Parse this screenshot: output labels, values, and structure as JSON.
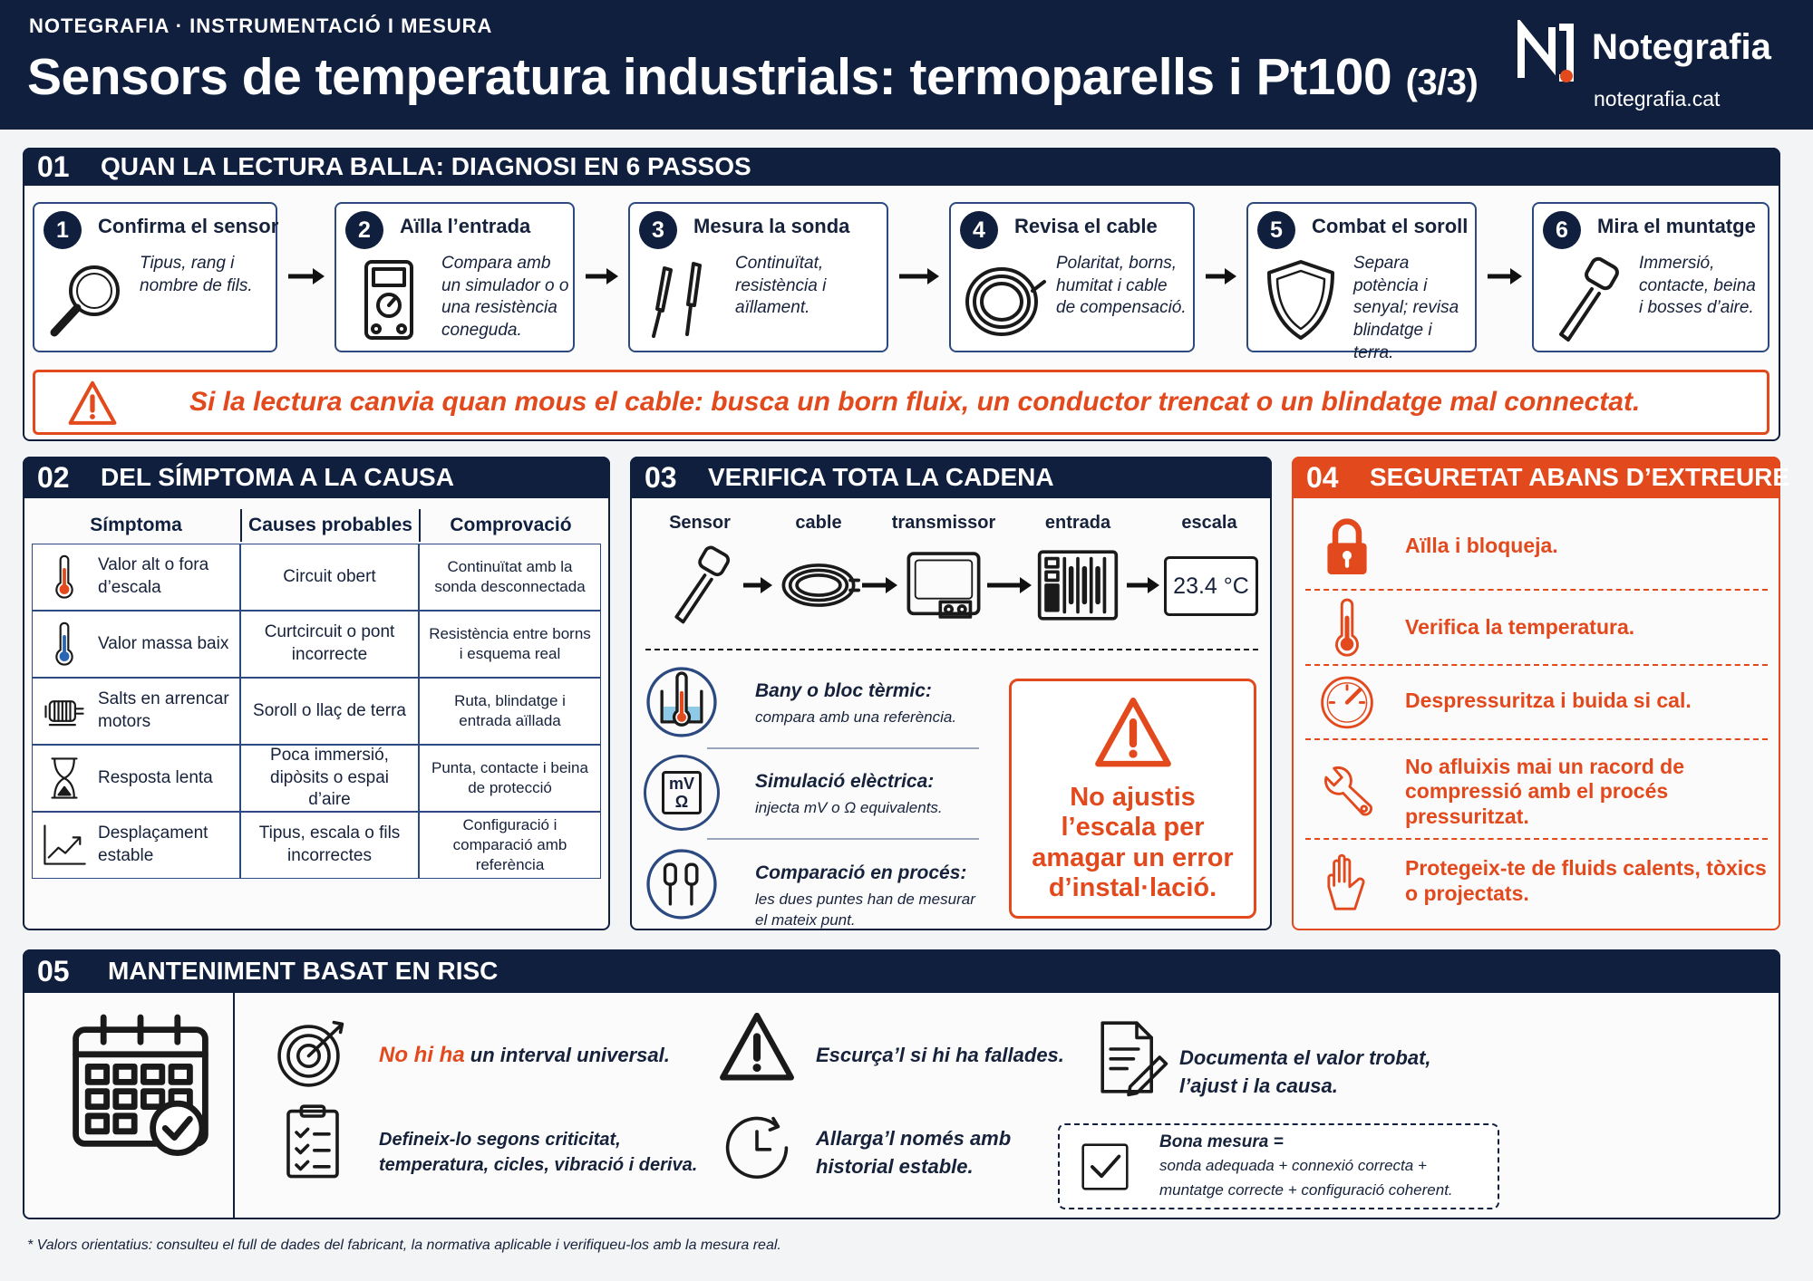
{
  "header": {
    "kicker": "NOTEGRAFIA · INSTRUMENTACIÓ I MESURA",
    "title": "Sensors de temperatura industrials: termoparells i Pt100",
    "part": "(3/3)",
    "brand": "Notegrafia",
    "url": "notegrafia.cat"
  },
  "section1": {
    "number": "01",
    "title": "QUAN LA LECTURA BALLA: DIAGNOSI EN 6 PASSOS",
    "steps": [
      {
        "number": "1",
        "title": "Confirma el sensor",
        "text": "Tipus, rang i nombre de fils."
      },
      {
        "number": "2",
        "title": "Aïlla l’entrada",
        "text": "Compara amb un simulador o o una resistència coneguda."
      },
      {
        "number": "3",
        "title": "Mesura la sonda",
        "text": "Continuïtat, resistència i aïllament."
      },
      {
        "number": "4",
        "title": "Revisa el cable",
        "text": "Polaritat, borns, humitat i cable de compensació."
      },
      {
        "number": "5",
        "title": "Combat el soroll",
        "text": "Separa potència i senyal; revisa blindatge i terra."
      },
      {
        "number": "6",
        "title": "Mira el muntatge",
        "text": "Immersió, contacte, beina i bosses d’aire."
      }
    ],
    "warning": "Si la lectura canvia quan mous el cable: busca un born fluix, un conductor trencat o un blindatge mal connectat."
  },
  "section2": {
    "number": "02",
    "title": "DEL SÍMPTOMA A LA CAUSA",
    "table": {
      "headers": [
        "Símptoma",
        "Causes probables",
        "Comprovació"
      ],
      "rows": [
        [
          "Valor alt o fora d’escala",
          "Circuit obert",
          "Continuïtat amb la sonda desconnectada"
        ],
        [
          "Valor massa baix",
          "Curtcircuit o pont incorrecte",
          "Resistència entre borns i esquema real"
        ],
        [
          "Salts en arrencar motors",
          "Soroll o llaç de terra",
          "Ruta, blindatge i entrada aïllada"
        ],
        [
          "Resposta lenta",
          "Poca immersió, dipòsits o espai d’aire",
          "Punta, contacte i beina de protecció"
        ],
        [
          "Desplaçament estable",
          "Tipus, escala o fils incorrectes",
          "Configuració i comparació amb referència"
        ]
      ]
    }
  },
  "section3": {
    "number": "03",
    "title": "VERIFICA TOTA LA CADENA",
    "chain": [
      "Sensor",
      "cable",
      "transmissor",
      "entrada",
      "escala"
    ],
    "display": "23.4 °C",
    "methods": [
      {
        "title": "Bany o bloc tèrmic:",
        "text": "compara amb una referència."
      },
      {
        "title": "Simulació elèctrica:",
        "text": "injecta mV o Ω equivalents."
      },
      {
        "title": "Comparació en procés:",
        "text": "les dues puntes han de mesurar el mateix punt."
      }
    ],
    "electric_icon": [
      "mV",
      "Ω"
    ],
    "warning": "No ajustis l’escala per amagar un error d’instal·lació."
  },
  "section4": {
    "number": "04",
    "title": "SEGURETAT ABANS D’EXTREURE",
    "items": [
      "Aïlla i bloqueja.",
      "Verifica la temperatura.",
      "Despressuritza i buida si cal.",
      "No afluixis mai un racord de compressió amb el procés pressuritzat.",
      "Protegeix-te de fluids calents, tòxics o projectats."
    ]
  },
  "section5": {
    "number": "05",
    "title": "MANTENIMENT BASAT EN RISC",
    "items": [
      {
        "highlight": "No hi ha",
        "text": "un interval universal."
      },
      {
        "text": "Defineix-lo segons criticitat, temperatura, cicles, vibració i deriva."
      },
      {
        "text": "Escurça’l si hi ha fallades."
      },
      {
        "text": "Allarga’l només amb historial estable."
      },
      {
        "text": "Documenta el valor trobat, l’ajust i la causa."
      }
    ],
    "summary": [
      "Bona mesura =",
      "sonda adequada + connexió correcta +",
      "muntatge correcte + configuració coherent."
    ]
  },
  "footnote": "* Valors orientatius: consulteu el full de dades del fabricant, la normativa aplicable i verifiqueu-los amb la mesura real."
}
